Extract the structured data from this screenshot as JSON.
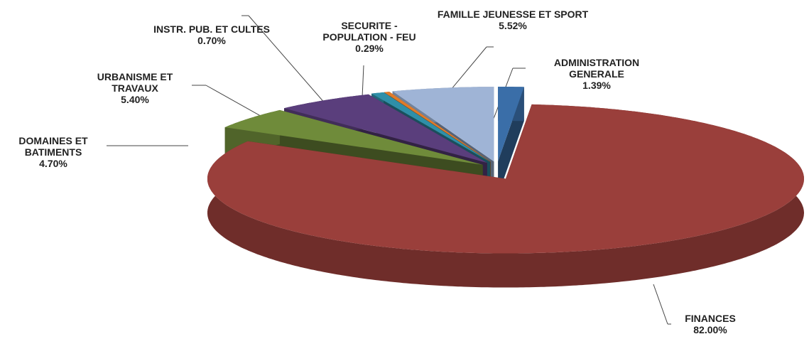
{
  "chart_data": {
    "type": "pie3d",
    "categories": [
      "ADMINISTRATION GENERALE",
      "FINANCES",
      "DOMAINES ET BATIMENTS",
      "URBANISME ET TRAVAUX",
      "INSTR. PUB. ET CULTES",
      "SECURITE - POPULATION - FEU",
      "FAMILLE JEUNESSE ET SPORT"
    ],
    "values": [
      1.39,
      82.0,
      4.7,
      5.4,
      0.7,
      0.29,
      5.52
    ],
    "value_labels": [
      "1.39%",
      "82.00%",
      "4.70%",
      "5.40%",
      "0.70%",
      "0.29%",
      "5.52%"
    ],
    "colors": [
      "#3a6ea8",
      "#9a3f3b",
      "#6f8b3a",
      "#5a3e7c",
      "#2f8fa8",
      "#e07b2a",
      "#9fb4d6"
    ]
  }
}
